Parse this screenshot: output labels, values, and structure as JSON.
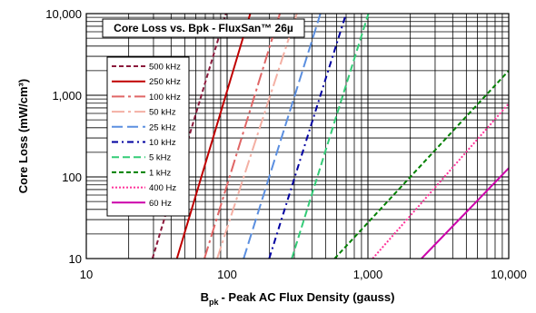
{
  "chart_data": {
    "type": "line",
    "title": "Core Loss vs. Bpk - FluxSan™ 26µ",
    "xlabel": "- Peak AC Flux Density (gauss)",
    "xlabel_symbol": "B",
    "xlabel_subscript": "pk",
    "ylabel": "Core Loss (mW/cm³)",
    "xscale": "log",
    "yscale": "log",
    "xlim": [
      10,
      10000
    ],
    "ylim": [
      10,
      10000
    ],
    "x_ticks": [
      10,
      100,
      1000,
      10000
    ],
    "x_tick_labels": [
      "10",
      "100",
      "1,000",
      "10,000"
    ],
    "y_ticks": [
      10,
      100,
      1000,
      10000
    ],
    "y_tick_labels": [
      "10",
      "100",
      "1,000",
      "10,000"
    ],
    "grid": true,
    "legend_position": "left",
    "series": [
      {
        "name": "500 kHz",
        "color": "#8b1a3c",
        "dash": "5,3",
        "x": [
          29.5,
          98
        ],
        "y": [
          10,
          10000
        ]
      },
      {
        "name": "250 kHz",
        "color": "#c00000",
        "dash": "",
        "x": [
          44,
          146
        ],
        "y": [
          10,
          10000
        ]
      },
      {
        "name": "100 kHz",
        "color": "#e06666",
        "dash": "14,4,3,4",
        "x": [
          69,
          237
        ],
        "y": [
          10,
          10000
        ]
      },
      {
        "name": "50 kHz",
        "color": "#f4b0a4",
        "dash": "14,4,3,4",
        "x": [
          85,
          313
        ],
        "y": [
          10,
          10000
        ]
      },
      {
        "name": "25 kHz",
        "color": "#5b8fe0",
        "dash": "12,5",
        "x": [
          131,
          460
        ],
        "y": [
          10,
          10000
        ]
      },
      {
        "name": "10 kHz",
        "color": "#0000a0",
        "dash": "7,4,2,4",
        "x": [
          199,
          700
        ],
        "y": [
          10,
          10000
        ]
      },
      {
        "name": "5 kHz",
        "color": "#33cc77",
        "dash": "8,4",
        "x": [
          288,
          1008
        ],
        "y": [
          10,
          10000
        ]
      },
      {
        "name": "1 kHz",
        "color": "#008000",
        "dash": "5,3",
        "x": [
          580,
          10000
        ],
        "y": [
          10,
          2000
        ]
      },
      {
        "name": "400 Hz",
        "color": "#ff3399",
        "dash": "2,2",
        "x": [
          1080,
          10000
        ],
        "y": [
          10,
          790
        ]
      },
      {
        "name": "60 Hz",
        "color": "#cc00aa",
        "dash": "",
        "x": [
          2400,
          10000
        ],
        "y": [
          10,
          128
        ]
      }
    ]
  }
}
